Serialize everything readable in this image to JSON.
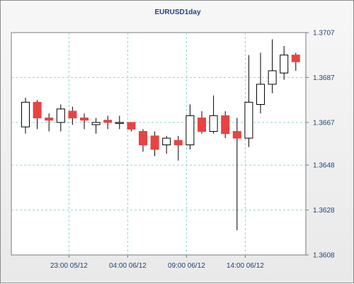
{
  "chart_data": {
    "type": "candlestick",
    "title": "EURUSD1day",
    "xlabel": "",
    "ylabel": "",
    "ylim": [
      1.3608,
      1.3707
    ],
    "y_ticks": [
      1.3707,
      1.3687,
      1.3667,
      1.3648,
      1.3628,
      1.3608
    ],
    "x_tick_labels": [
      "23:00 05/12",
      "04:00 06/12",
      "09:00 06/12",
      "14:00 06/12"
    ],
    "x_tick_candle_index": [
      3.7,
      8.7,
      13.7,
      18.7
    ],
    "grid": true,
    "colors": {
      "bull_body": "#ffffff",
      "bear_body": "#e84343",
      "outline": "#000000",
      "grid": "#8fd3d3",
      "text": "#20447a"
    },
    "candles": [
      {
        "open": 1.3665,
        "high": 1.3678,
        "low": 1.3662,
        "close": 1.3676
      },
      {
        "open": 1.3676,
        "high": 1.3677,
        "low": 1.3664,
        "close": 1.3669
      },
      {
        "open": 1.3669,
        "high": 1.3671,
        "low": 1.3663,
        "close": 1.3668
      },
      {
        "open": 1.3667,
        "high": 1.3675,
        "low": 1.3663,
        "close": 1.3673
      },
      {
        "open": 1.3672,
        "high": 1.3674,
        "low": 1.3666,
        "close": 1.3669
      },
      {
        "open": 1.3669,
        "high": 1.3671,
        "low": 1.3664,
        "close": 1.3668
      },
      {
        "open": 1.3666,
        "high": 1.3669,
        "low": 1.3662,
        "close": 1.3667
      },
      {
        "open": 1.3668,
        "high": 1.367,
        "low": 1.3664,
        "close": 1.3667
      },
      {
        "open": 1.3667,
        "high": 1.367,
        "low": 1.3664,
        "close": 1.3667
      },
      {
        "open": 1.3667,
        "high": 1.3667,
        "low": 1.3663,
        "close": 1.3664
      },
      {
        "open": 1.3663,
        "high": 1.3664,
        "low": 1.3654,
        "close": 1.3657
      },
      {
        "open": 1.3661,
        "high": 1.3663,
        "low": 1.3652,
        "close": 1.3655
      },
      {
        "open": 1.3657,
        "high": 1.3661,
        "low": 1.3653,
        "close": 1.366
      },
      {
        "open": 1.3659,
        "high": 1.3661,
        "low": 1.365,
        "close": 1.3657
      },
      {
        "open": 1.3657,
        "high": 1.3675,
        "low": 1.3655,
        "close": 1.367
      },
      {
        "open": 1.3669,
        "high": 1.3672,
        "low": 1.3662,
        "close": 1.3663
      },
      {
        "open": 1.3663,
        "high": 1.3679,
        "low": 1.3662,
        "close": 1.367
      },
      {
        "open": 1.367,
        "high": 1.3672,
        "low": 1.366,
        "close": 1.3662
      },
      {
        "open": 1.3663,
        "high": 1.3669,
        "low": 1.3619,
        "close": 1.366
      },
      {
        "open": 1.366,
        "high": 1.3697,
        "low": 1.3656,
        "close": 1.3676
      },
      {
        "open": 1.3675,
        "high": 1.3698,
        "low": 1.3671,
        "close": 1.3684
      },
      {
        "open": 1.3684,
        "high": 1.3704,
        "low": 1.368,
        "close": 1.369
      },
      {
        "open": 1.3689,
        "high": 1.3701,
        "low": 1.3686,
        "close": 1.3697
      },
      {
        "open": 1.3697,
        "high": 1.3698,
        "low": 1.369,
        "close": 1.3694
      }
    ]
  }
}
